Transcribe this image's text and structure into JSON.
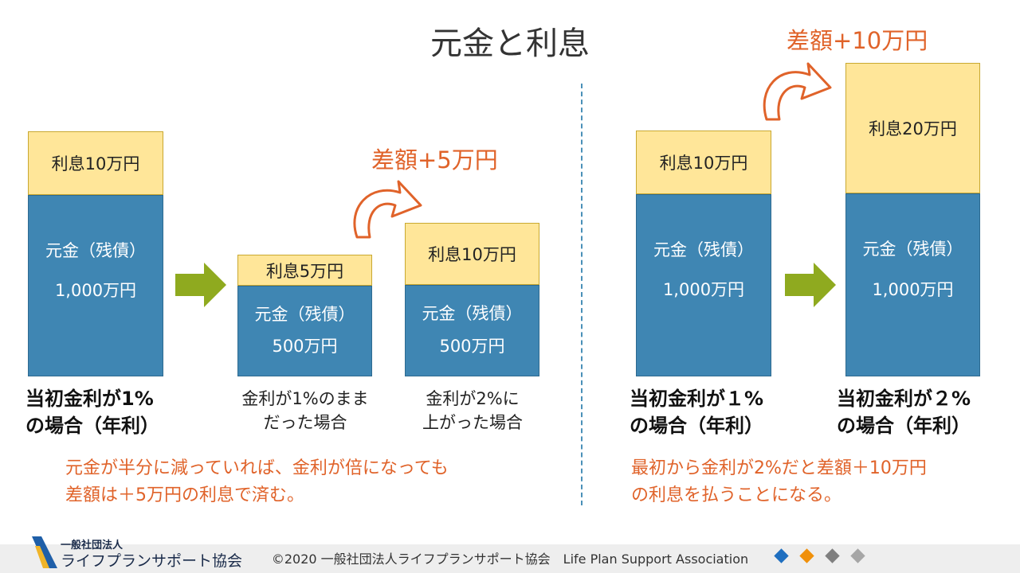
{
  "title": "元金と利息",
  "left_panel": {
    "bar_initial": {
      "interest": "利息10万円",
      "principal_line1": "元金（残債）",
      "principal_line2": "1,000万円"
    },
    "bar_1pct": {
      "interest": "利息5万円",
      "principal_line1": "元金（残債）",
      "principal_line2": "500万円"
    },
    "bar_2pct": {
      "interest": "利息10万円",
      "principal_line1": "元金（残債）",
      "principal_line2": "500万円"
    },
    "diff_label": "差額+5万円",
    "label_initial": [
      "当初金利が1%",
      "の場合（年利）"
    ],
    "label_1pct": [
      "金利が1%のまま",
      "だった場合"
    ],
    "label_2pct": [
      "金利が2%に",
      "上がった場合"
    ],
    "note": [
      "元金が半分に減っていれば、金利が倍になっても",
      "差額は＋5万円の利息で済む。"
    ]
  },
  "right_panel": {
    "bar_1pct": {
      "interest": "利息10万円",
      "principal_line1": "元金（残債）",
      "principal_line2": "1,000万円"
    },
    "bar_2pct": {
      "interest": "利息20万円",
      "principal_line1": "元金（残債）",
      "principal_line2": "1,000万円"
    },
    "diff_label": "差額+10万円",
    "label_1pct": [
      "当初金利が１%",
      "の場合（年利）"
    ],
    "label_2pct": [
      "当初金利が２%",
      "の場合（年利）"
    ],
    "note": [
      "最初から金利が2%だと差額＋10万円",
      "の利息を払うことになる。"
    ]
  },
  "footer": {
    "org_small": "一般社団法人",
    "org_big": "ライフプランサポート協会",
    "copyright": "©2020 一般社団法人ライフプランサポート協会　Life Plan Support Association"
  },
  "colors": {
    "principal": "#3f86b3",
    "interest": "#ffe699",
    "accent": "#e0632a",
    "arrow": "#8faa1f",
    "diamonds": [
      "#1f6fc0",
      "#f0900a",
      "#7f7f7f",
      "#a6a6a6"
    ]
  }
}
